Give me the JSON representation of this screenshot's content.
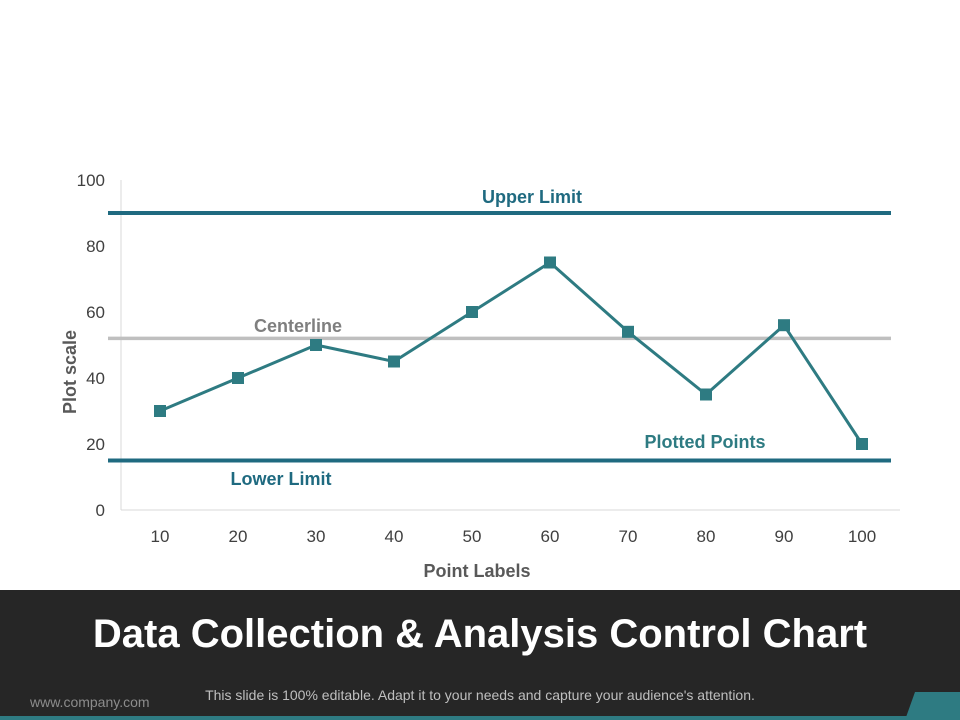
{
  "colors": {
    "accent": "#2e7b82",
    "limit_line": "#1f6a80",
    "centerline": "#bfbfbf",
    "centerline_label": "#7f7f7f",
    "footer_bg": "#262626",
    "axis": "#d9d9d9"
  },
  "chart_data": {
    "type": "line",
    "title": "",
    "xlabel": "Point Labels",
    "ylabel": "Plot scale",
    "categories": [
      "10",
      "20",
      "30",
      "40",
      "50",
      "60",
      "70",
      "80",
      "90",
      "100"
    ],
    "series": [
      {
        "name": "Plotted Points",
        "values": [
          30,
          40,
          50,
          45,
          60,
          75,
          54,
          35,
          56,
          20
        ]
      }
    ],
    "ylim": [
      0,
      100
    ],
    "yticks": [
      0,
      20,
      40,
      60,
      80,
      100
    ],
    "grid": false,
    "reference_lines": [
      {
        "name": "Upper Limit",
        "value": 90
      },
      {
        "name": "Centerline",
        "value": 52
      },
      {
        "name": "Lower Limit",
        "value": 15
      }
    ]
  },
  "labels": {
    "upper_limit": "Upper Limit",
    "centerline": "Centerline",
    "lower_limit": "Lower Limit",
    "plotted_points": "Plotted Points"
  },
  "footer": {
    "title": "Data Collection & Analysis Control Chart",
    "website": "www.company.com",
    "tagline": "This slide is 100% editable. Adapt it to your needs and capture your audience's attention."
  }
}
